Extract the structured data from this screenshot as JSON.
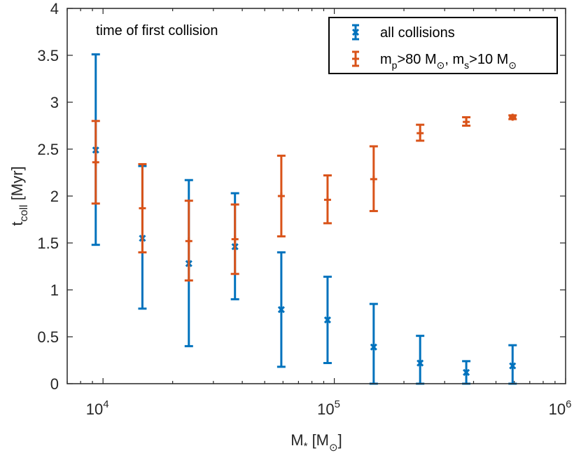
{
  "chart_data": {
    "type": "scatter",
    "title": "",
    "annotation": "time of first collision",
    "xlabel": "M",
    "xlabel_sub": "*",
    "xlabel_unit_open": " [M",
    "xlabel_unit_sub": "⊙",
    "xlabel_unit_close": "]",
    "ylabel": "t",
    "ylabel_sub": "coll",
    "ylabel_unit": " [Myr]",
    "xscale": "log",
    "xlim": [
      7000,
      1000000
    ],
    "ylim": [
      0,
      4
    ],
    "grid": false,
    "legend_location": "top-right",
    "x_ticks": [
      {
        "value": 10000,
        "base": "10",
        "exp": "4"
      },
      {
        "value": 100000,
        "base": "10",
        "exp": "5"
      },
      {
        "value": 1000000,
        "base": "10",
        "exp": "6"
      }
    ],
    "y_ticks": [
      {
        "value": 0,
        "label": "0"
      },
      {
        "value": 0.5,
        "label": "0.5"
      },
      {
        "value": 1,
        "label": "1"
      },
      {
        "value": 1.5,
        "label": "1.5"
      },
      {
        "value": 2,
        "label": "2"
      },
      {
        "value": 2.5,
        "label": "2.5"
      },
      {
        "value": 3,
        "label": "3"
      },
      {
        "value": 3.5,
        "label": "3.5"
      },
      {
        "value": 4,
        "label": "4"
      }
    ],
    "series": [
      {
        "name": "all collisions",
        "color": "#0072BD",
        "marker": "x",
        "x": [
          9300,
          14800,
          23500,
          37200,
          59000,
          93500,
          148000,
          235000,
          372000,
          590000
        ],
        "y": [
          2.49,
          1.55,
          1.28,
          1.46,
          0.79,
          0.68,
          0.39,
          0.22,
          0.12,
          0.19
        ],
        "y_low": [
          1.48,
          0.8,
          0.4,
          0.9,
          0.18,
          0.22,
          0.0,
          0.0,
          0.0,
          0.0
        ],
        "y_high": [
          3.51,
          2.32,
          2.17,
          2.03,
          1.4,
          1.14,
          0.85,
          0.51,
          0.24,
          0.41
        ]
      },
      {
        "name_parts": [
          "m",
          "p",
          ">80 M",
          "⊙",
          ", m",
          "s",
          ">10 M",
          "⊙"
        ],
        "color": "#D95319",
        "marker": "+",
        "x": [
          9300,
          14800,
          23500,
          37200,
          59000,
          93500,
          148000,
          235000,
          372000,
          590000
        ],
        "y": [
          2.36,
          1.87,
          1.52,
          1.54,
          2.0,
          1.96,
          2.18,
          2.67,
          2.79,
          2.84
        ],
        "y_low": [
          1.92,
          1.4,
          1.1,
          1.17,
          1.57,
          1.71,
          1.84,
          2.59,
          2.75,
          2.82
        ],
        "y_high": [
          2.8,
          2.34,
          1.95,
          1.91,
          2.43,
          2.22,
          2.53,
          2.76,
          2.84,
          2.86
        ]
      }
    ]
  }
}
